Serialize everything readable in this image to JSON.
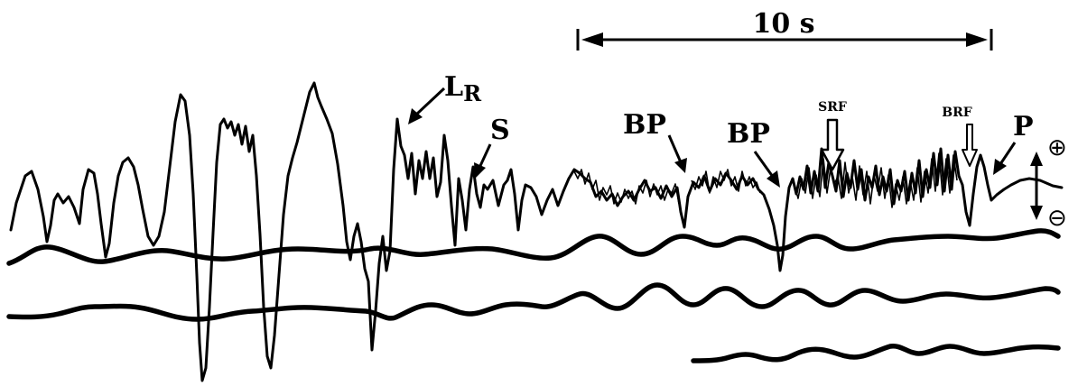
{
  "scale_bar": {
    "label": "10 s"
  },
  "labels": {
    "lr_main": "L",
    "lr_sub": "R",
    "s": "S",
    "bp1": "BP",
    "bp2": "BP",
    "srf": "SRF",
    "brf": "BRF",
    "p": "P",
    "plus": "⊕",
    "minus": "⊖"
  },
  "colors": {
    "ink": "#000000",
    "background": "#ffffff"
  }
}
